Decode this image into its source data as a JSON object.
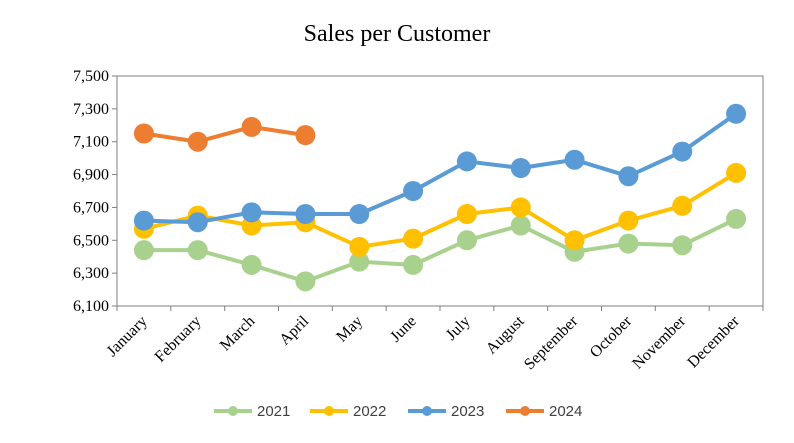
{
  "chart_data": {
    "type": "line",
    "title": "Sales per Customer",
    "xlabel": "",
    "ylabel": "",
    "ylim": [
      6100,
      7500
    ],
    "y_ticks": [
      "6,100",
      "6,300",
      "6,500",
      "6,700",
      "6,900",
      "7,100",
      "7,300",
      "7,500"
    ],
    "y_tick_values": [
      6100,
      6300,
      6500,
      6700,
      6900,
      7100,
      7300,
      7500
    ],
    "categories": [
      "January",
      "February",
      "March",
      "April",
      "May",
      "June",
      "July",
      "August",
      "September",
      "October",
      "November",
      "December"
    ],
    "grid": false,
    "legend_position": "bottom",
    "series": [
      {
        "name": "2021",
        "color": "#A9D18E",
        "values": [
          6440,
          6440,
          6350,
          6250,
          6370,
          6350,
          6500,
          6590,
          6430,
          6480,
          6470,
          6630
        ]
      },
      {
        "name": "2022",
        "color": "#FFC000",
        "values": [
          6570,
          6650,
          6590,
          6610,
          6460,
          6510,
          6660,
          6700,
          6500,
          6620,
          6710,
          6910
        ]
      },
      {
        "name": "2023",
        "color": "#5B9BD5",
        "values": [
          6620,
          6610,
          6670,
          6660,
          6660,
          6800,
          6980,
          6940,
          6990,
          6890,
          7040,
          7270
        ]
      },
      {
        "name": "2024",
        "color": "#ED7D31",
        "values": [
          7150,
          7100,
          7190,
          7140,
          null,
          null,
          null,
          null,
          null,
          null,
          null,
          null
        ]
      }
    ]
  }
}
